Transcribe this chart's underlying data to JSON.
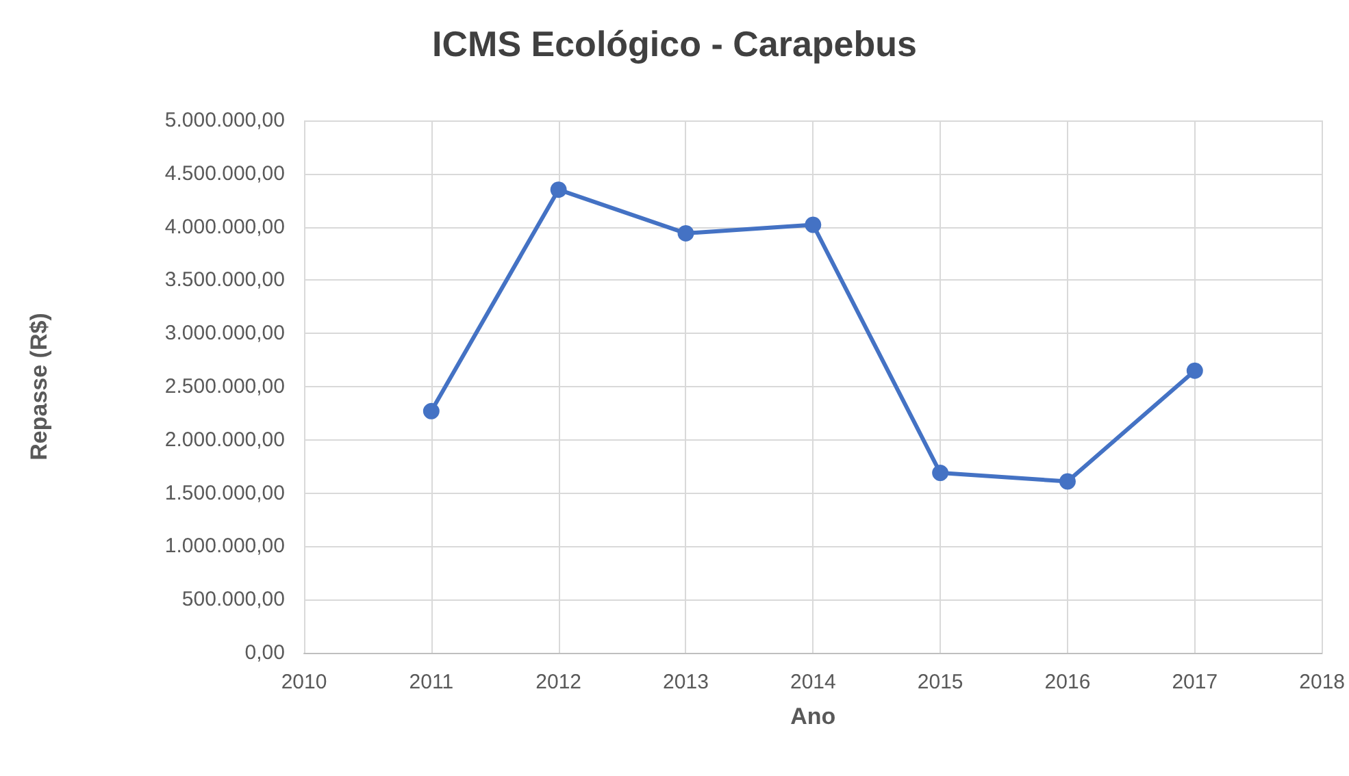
{
  "chart_data": {
    "type": "line",
    "title": "ICMS Ecológico - Carapebus",
    "xlabel": "Ano",
    "ylabel": "Repasse (R$)",
    "x": [
      2011,
      2012,
      2013,
      2014,
      2015,
      2016,
      2017
    ],
    "series": [
      {
        "color": "#4472c4",
        "values": [
          2270000,
          4350000,
          3940000,
          4020000,
          1690000,
          1610000,
          2650000
        ]
      }
    ],
    "xlim": [
      2010,
      2018
    ],
    "xticks": [
      2010,
      2011,
      2012,
      2013,
      2014,
      2015,
      2016,
      2017,
      2018
    ],
    "ylim": [
      0,
      5000000
    ],
    "yticks": [
      {
        "value": 0,
        "label": "0,00"
      },
      {
        "value": 500000,
        "label": "500.000,00"
      },
      {
        "value": 1000000,
        "label": "1.000.000,00"
      },
      {
        "value": 1500000,
        "label": "1.500.000,00"
      },
      {
        "value": 2000000,
        "label": "2.000.000,00"
      },
      {
        "value": 2500000,
        "label": "2.500.000,00"
      },
      {
        "value": 3000000,
        "label": "3.000.000,00"
      },
      {
        "value": 3500000,
        "label": "3.500.000,00"
      },
      {
        "value": 4000000,
        "label": "4.000.000,00"
      },
      {
        "value": 4500000,
        "label": "4.500.000,00"
      },
      {
        "value": 5000000,
        "label": "5.000.000,00"
      }
    ],
    "grid": true,
    "marker": "circle",
    "line_style": "solid"
  }
}
